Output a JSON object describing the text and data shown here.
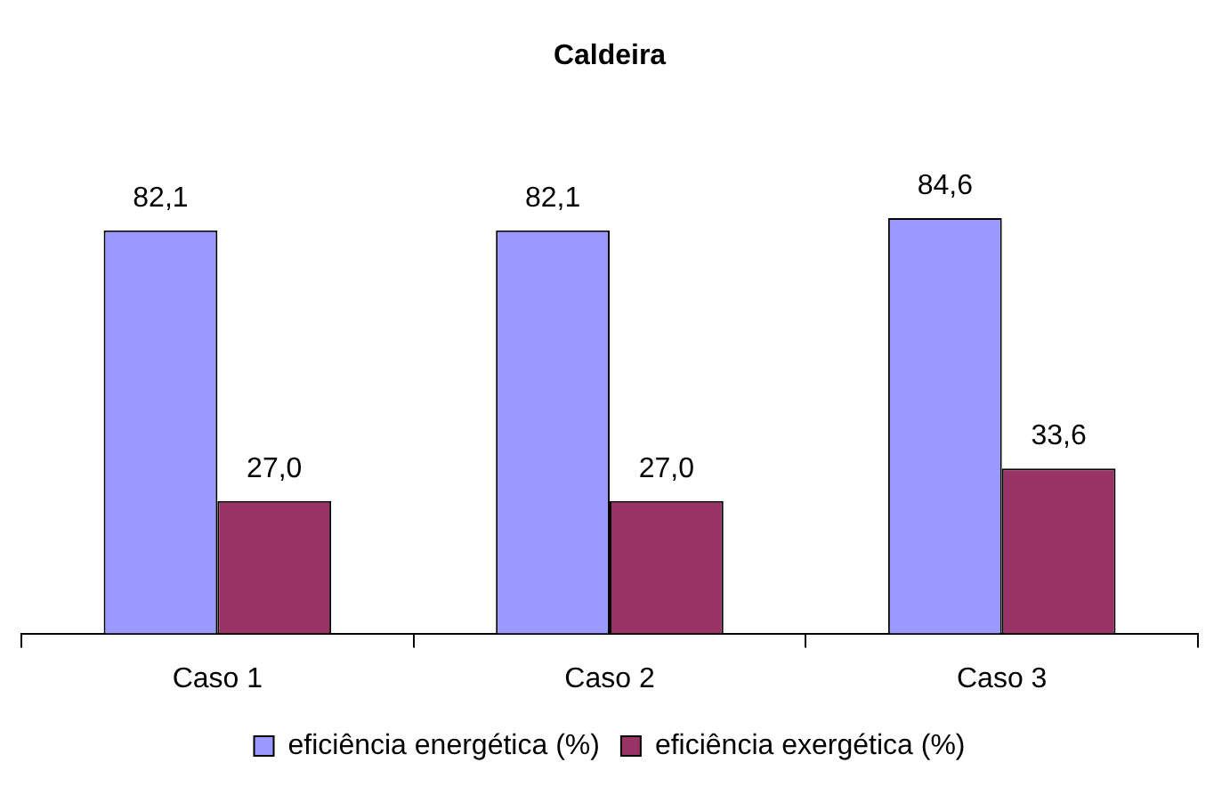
{
  "chart_data": {
    "type": "bar",
    "title": "Caldeira",
    "categories": [
      "Caso 1",
      "Caso 2",
      "Caso 3"
    ],
    "series": [
      {
        "name": "eficiência energética (%)",
        "color": "#9999ff",
        "values": [
          82.1,
          82.1,
          84.6
        ],
        "value_labels": [
          "82,1",
          "82,1",
          "84,6"
        ]
      },
      {
        "name": "eficiência exergética (%)",
        "color": "#993366",
        "values": [
          27.0,
          27.0,
          33.6
        ],
        "value_labels": [
          "27,0",
          "27,0",
          "33,6"
        ]
      }
    ],
    "legend": "bottom"
  }
}
